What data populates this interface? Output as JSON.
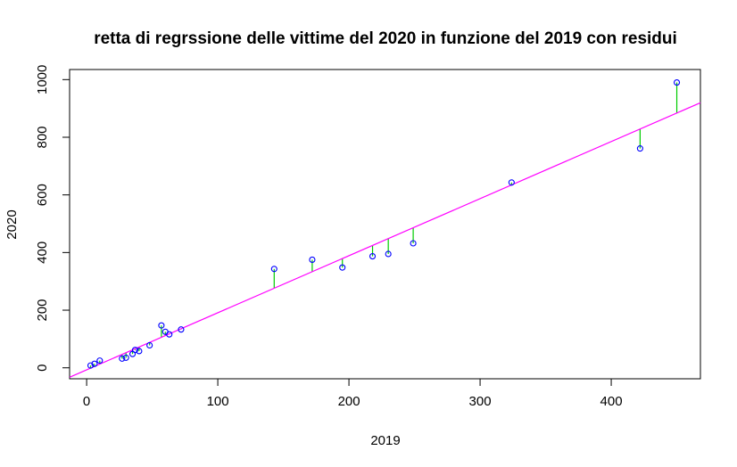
{
  "chart_data": {
    "type": "scatter",
    "title": "retta di regrssione delle vittime del 2020 in funzione del 2019 con residui",
    "xlabel": "2019",
    "ylabel": "2020",
    "xlim": [
      -13,
      468
    ],
    "ylim": [
      -38,
      1035
    ],
    "x_ticks": [
      0,
      100,
      200,
      300,
      400
    ],
    "y_ticks": [
      0,
      200,
      400,
      600,
      800,
      1000
    ],
    "grid": false,
    "legend": "none",
    "regression_line": {
      "intercept": -7,
      "slope": 1.98
    },
    "points": [
      {
        "x": 3,
        "y": 8
      },
      {
        "x": 6,
        "y": 14
      },
      {
        "x": 10,
        "y": 25
      },
      {
        "x": 27,
        "y": 32
      },
      {
        "x": 30,
        "y": 35
      },
      {
        "x": 35,
        "y": 48
      },
      {
        "x": 37,
        "y": 62
      },
      {
        "x": 40,
        "y": 58
      },
      {
        "x": 48,
        "y": 78
      },
      {
        "x": 57,
        "y": 147
      },
      {
        "x": 60,
        "y": 125
      },
      {
        "x": 63,
        "y": 116
      },
      {
        "x": 72,
        "y": 133
      },
      {
        "x": 143,
        "y": 343
      },
      {
        "x": 172,
        "y": 375
      },
      {
        "x": 195,
        "y": 348
      },
      {
        "x": 218,
        "y": 387
      },
      {
        "x": 230,
        "y": 395
      },
      {
        "x": 249,
        "y": 432
      },
      {
        "x": 324,
        "y": 643
      },
      {
        "x": 422,
        "y": 761
      },
      {
        "x": 450,
        "y": 990
      }
    ],
    "colors": {
      "points": "#0000ff",
      "regression_line": "#ff00ff",
      "residuals": "#00cc00",
      "axes": "#000000"
    }
  }
}
